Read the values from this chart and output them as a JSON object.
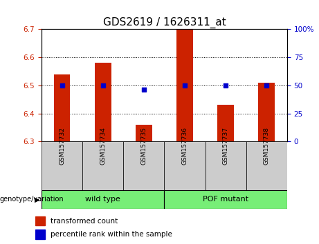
{
  "title": "GDS2619 / 1626311_at",
  "samples": [
    "GSM157732",
    "GSM157734",
    "GSM157735",
    "GSM157736",
    "GSM157737",
    "GSM157738"
  ],
  "transformed_count": [
    6.54,
    6.58,
    6.36,
    6.7,
    6.43,
    6.51
  ],
  "percentile_rank": [
    50,
    50,
    46,
    50,
    50,
    50
  ],
  "ylim_left": [
    6.3,
    6.7
  ],
  "ylim_right": [
    0,
    100
  ],
  "yticks_left": [
    6.3,
    6.4,
    6.5,
    6.6,
    6.7
  ],
  "yticks_right": [
    0,
    25,
    50,
    75,
    100
  ],
  "ytick_right_labels": [
    "0",
    "25",
    "50",
    "75",
    "100%"
  ],
  "bar_color": "#cc2200",
  "dot_color": "#0000cc",
  "bar_width": 0.4,
  "group_ranges": [
    [
      0,
      2,
      "wild type"
    ],
    [
      3,
      5,
      "POF mutant"
    ]
  ],
  "group_color": "#77ee77",
  "sample_cell_color": "#cccccc",
  "group_label_prefix": "genotype/variation",
  "legend_items": [
    {
      "label": "transformed count",
      "color": "#cc2200"
    },
    {
      "label": "percentile rank within the sample",
      "color": "#0000cc"
    }
  ],
  "background_color": "#ffffff",
  "title_fontsize": 11,
  "left_tick_color": "#cc2200",
  "right_tick_color": "#0000cc"
}
